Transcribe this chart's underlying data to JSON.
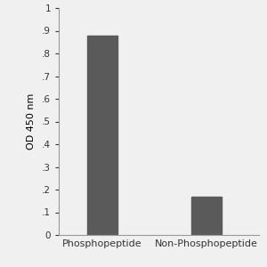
{
  "categories": [
    "Phosphopeptide",
    "Non-Phosphopeptide"
  ],
  "values": [
    0.88,
    0.17
  ],
  "bar_color": "#5a5a5a",
  "bar_width": 0.35,
  "ylabel": "OD 450 nm",
  "ylim": [
    0,
    1.0
  ],
  "yticks": [
    0,
    0.1,
    0.2,
    0.3,
    0.4,
    0.5,
    0.6,
    0.7,
    0.8,
    0.9,
    1
  ],
  "ytick_labels": [
    "0",
    ".1",
    ".2",
    ".3",
    ".4",
    ".5",
    ".6",
    ".7",
    ".8",
    ".9",
    "1"
  ],
  "ylabel_fontsize": 8,
  "tick_fontsize": 7.5,
  "xlabel_fontsize": 8,
  "background_color": "#f0f0f0",
  "axes_background": "#f0f0f0"
}
